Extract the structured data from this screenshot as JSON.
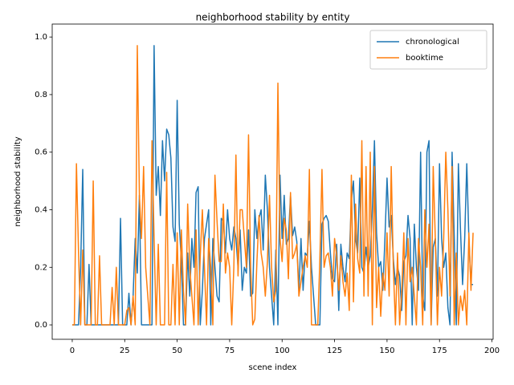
{
  "chart_data": {
    "type": "line",
    "title": "neighborhood stability by entity",
    "xlabel": "scene index",
    "ylabel": "neighborhood stability",
    "x": [
      0,
      1,
      2,
      3,
      4,
      5,
      6,
      7,
      8,
      9,
      10,
      11,
      12,
      13,
      14,
      15,
      16,
      17,
      18,
      19,
      20,
      21,
      22,
      23,
      24,
      25,
      26,
      27,
      28,
      29,
      30,
      31,
      32,
      33,
      34,
      35,
      36,
      37,
      38,
      39,
      40,
      41,
      42,
      43,
      44,
      45,
      46,
      47,
      48,
      49,
      50,
      51,
      52,
      53,
      54,
      55,
      56,
      57,
      58,
      59,
      60,
      61,
      62,
      63,
      64,
      65,
      66,
      67,
      68,
      69,
      70,
      71,
      72,
      73,
      74,
      75,
      76,
      77,
      78,
      79,
      80,
      81,
      82,
      83,
      84,
      85,
      86,
      87,
      88,
      89,
      90,
      91,
      92,
      93,
      94,
      95,
      96,
      97,
      98,
      99,
      100,
      101,
      102,
      103,
      104,
      105,
      106,
      107,
      108,
      109,
      110,
      111,
      112,
      113,
      114,
      115,
      116,
      117,
      118,
      119,
      120,
      121,
      122,
      123,
      124,
      125,
      126,
      127,
      128,
      129,
      130,
      131,
      132,
      133,
      134,
      135,
      136,
      137,
      138,
      139,
      140,
      141,
      142,
      143,
      144,
      145,
      146,
      147,
      148,
      149,
      150,
      151,
      152,
      153,
      154,
      155,
      156,
      157,
      158,
      159,
      160,
      161,
      162,
      163,
      164,
      165,
      166,
      167,
      168,
      169,
      170,
      171,
      172,
      173,
      174,
      175,
      176,
      177,
      178,
      179,
      180,
      181,
      182,
      183,
      184,
      185,
      186,
      187,
      188,
      189,
      190,
      191
    ],
    "series": [
      {
        "name": "chronological",
        "color": "#1f77b4",
        "values": [
          0,
          0,
          0,
          0,
          0.2,
          0.54,
          0,
          0,
          0.21,
          0,
          0,
          0,
          0,
          0,
          0,
          0,
          0,
          0,
          0,
          0,
          0,
          0,
          0,
          0.37,
          0,
          0,
          0,
          0.11,
          0,
          0.1,
          0.3,
          0.18,
          0.45,
          0,
          0,
          0,
          0,
          0,
          0,
          0.97,
          0.45,
          0.55,
          0.38,
          0.64,
          0.5,
          0.68,
          0.66,
          0.58,
          0.34,
          0.29,
          0.78,
          0.35,
          0.22,
          0,
          0,
          0.25,
          0.1,
          0.3,
          0.2,
          0.46,
          0.48,
          0,
          0.12,
          0.3,
          0.35,
          0.4,
          0,
          0.3,
          0.2,
          0.1,
          0.08,
          0.37,
          0.36,
          0.25,
          0.4,
          0.3,
          0.26,
          0.34,
          0.3,
          0.2,
          0.33,
          0.12,
          0.2,
          0.18,
          0.33,
          0.1,
          0.11,
          0.4,
          0.3,
          0.37,
          0.4,
          0.26,
          0.52,
          0.4,
          0.2,
          0.1,
          0,
          0.26,
          0,
          0.52,
          0.3,
          0.45,
          0.28,
          0.3,
          0.45,
          0.31,
          0.34,
          0.29,
          0.12,
          0.3,
          0.12,
          0.25,
          0.24,
          0.36,
          0.2,
          0.1,
          0,
          0,
          0,
          0.35,
          0.37,
          0.38,
          0.36,
          0.25,
          0.16,
          0.15,
          0.28,
          0.05,
          0.28,
          0.2,
          0.15,
          0.25,
          0.23,
          0.43,
          0.5,
          0.3,
          0.25,
          0.51,
          0.2,
          0.18,
          0.27,
          0.2,
          0.24,
          0.4,
          0.64,
          0.32,
          0.2,
          0.22,
          0.12,
          0.3,
          0.51,
          0.34,
          0.38,
          0.23,
          0.14,
          0.2,
          0.17,
          0.05,
          0.22,
          0.24,
          0.38,
          0.3,
          0,
          0.35,
          0.2,
          0.12,
          0.6,
          0.1,
          0.05,
          0.6,
          0.64,
          0,
          0.27,
          0.3,
          0.1,
          0.56,
          0.3,
          0.2,
          0.25,
          0.06,
          0,
          0.6,
          0.31,
          0,
          0.56,
          0.33,
          0.14,
          0.3,
          0.56,
          0.3,
          0.14,
          0.14
        ]
      },
      {
        "name": "booktime",
        "color": "#ff7f0e",
        "values": [
          0,
          0,
          0.56,
          0.25,
          0,
          0.26,
          0,
          0,
          0,
          0,
          0.5,
          0,
          0,
          0.24,
          0,
          0,
          0,
          0,
          0,
          0.13,
          0,
          0.2,
          0,
          0,
          0,
          0,
          0.05,
          0.06,
          0,
          0.1,
          0,
          0.97,
          0.45,
          0.3,
          0.55,
          0.2,
          0.1,
          0,
          0.64,
          0.3,
          0,
          0.28,
          0,
          0,
          0,
          0.53,
          0,
          0,
          0.21,
          0,
          0.32,
          0,
          0.33,
          0.12,
          0,
          0.42,
          0.2,
          0.1,
          0,
          0.33,
          0,
          0.24,
          0.4,
          0.2,
          0,
          0.3,
          0.2,
          0,
          0.52,
          0.36,
          0.22,
          0.22,
          0.42,
          0.18,
          0.25,
          0.2,
          0,
          0.2,
          0.59,
          0.17,
          0.4,
          0.4,
          0.3,
          0.2,
          0.66,
          0.2,
          0,
          0.02,
          0.22,
          0.38,
          0.25,
          0.2,
          0.1,
          0.22,
          0.45,
          0.2,
          0.08,
          0.12,
          0.84,
          0.3,
          0.22,
          0.37,
          0.33,
          0.16,
          0.46,
          0.23,
          0.25,
          0.28,
          0.1,
          0.15,
          0.2,
          0.24,
          0.2,
          0.54,
          0,
          0,
          0,
          0,
          0.23,
          0.54,
          0.2,
          0.24,
          0.25,
          0.2,
          0.1,
          0.3,
          0.24,
          0.12,
          0.24,
          0.15,
          0.1,
          0.18,
          0.05,
          0.52,
          0.08,
          0.42,
          0.23,
          0.18,
          0.64,
          0.1,
          0.55,
          0.1,
          0.6,
          0,
          0.55,
          0.06,
          0.2,
          0.03,
          0.18,
          0.12,
          0.32,
          0.1,
          0.55,
          0.2,
          0,
          0.25,
          0,
          0.11,
          0.32,
          0,
          0.3,
          0.15,
          0.2,
          0.1,
          0,
          0.3,
          0.2,
          0,
          0.4,
          0.2,
          0.35,
          0,
          0.55,
          0.3,
          0,
          0.2,
          0.1,
          0.3,
          0.6,
          0.4,
          0.1,
          0.55,
          0,
          0.25,
          0,
          0.1,
          0.05,
          0.12,
          0,
          0.32,
          0.12,
          0.32
        ]
      }
    ],
    "xlim": [
      -9.55,
      200.55
    ],
    "xticks": [
      0,
      25,
      50,
      75,
      100,
      125,
      150,
      175,
      200
    ],
    "ylim": [
      -0.05,
      1.045
    ],
    "yticks": [
      {
        "value": 0,
        "label": "0.0"
      },
      0.2,
      0.4,
      0.6,
      0.8,
      {
        "value": 1,
        "label": "1.0"
      }
    ],
    "legend": "upper right",
    "grid": false
  }
}
